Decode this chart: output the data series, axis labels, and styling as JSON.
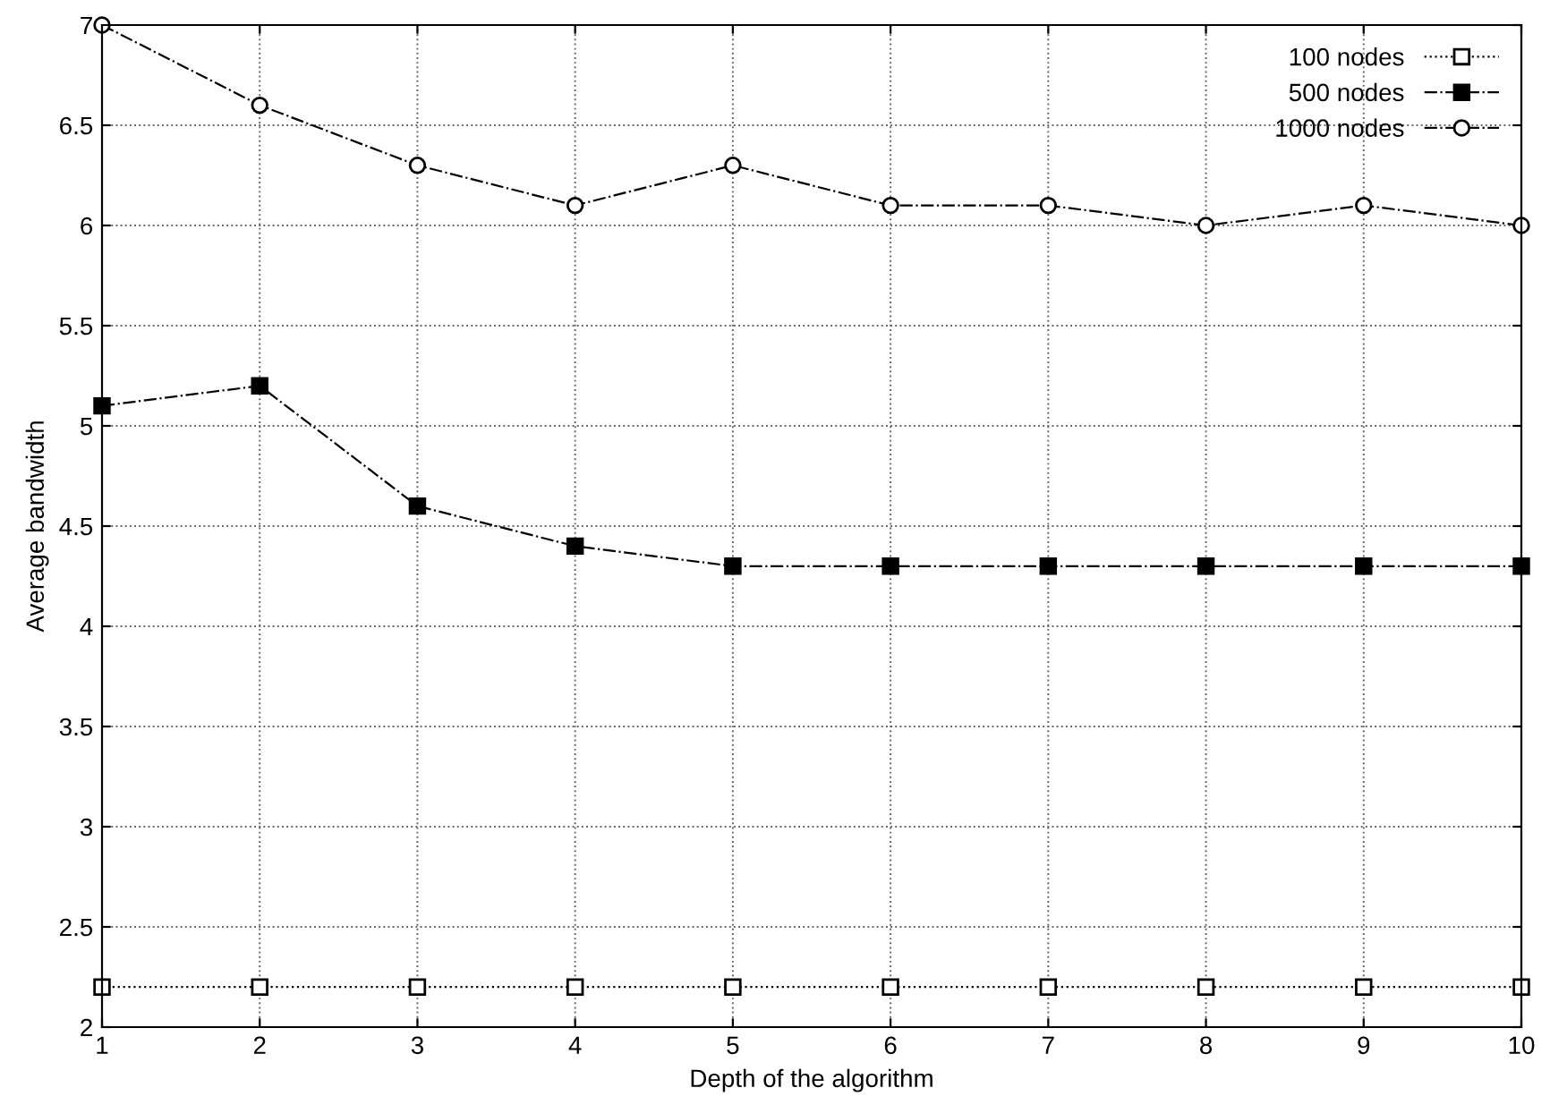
{
  "chart_data": {
    "type": "line",
    "xlabel": "Depth of the algorithm",
    "ylabel": "Average bandwidth",
    "x": [
      1,
      2,
      3,
      4,
      5,
      6,
      7,
      8,
      9,
      10
    ],
    "series": [
      {
        "name": "100 nodes",
        "color": "#000000",
        "marker": "square_open",
        "line_style": "dotted",
        "values": [
          2.2,
          2.2,
          2.2,
          2.2,
          2.2,
          2.2,
          2.2,
          2.2,
          2.2,
          2.2
        ]
      },
      {
        "name": "500 nodes",
        "color": "#000000",
        "marker": "square",
        "line_style": "dashdot",
        "values": [
          5.1,
          5.2,
          4.6,
          4.4,
          4.3,
          4.3,
          4.3,
          4.3,
          4.3,
          4.3
        ]
      },
      {
        "name": "1000 nodes",
        "color": "#000000",
        "marker": "circle_open",
        "line_style": "dashdot",
        "values": [
          7.0,
          6.6,
          6.3,
          6.1,
          6.3,
          6.1,
          6.1,
          6.0,
          6.1,
          6.0
        ]
      }
    ],
    "xlim": [
      1,
      10
    ],
    "xticks": [
      1,
      2,
      3,
      4,
      5,
      6,
      7,
      8,
      9,
      10
    ],
    "ylim": [
      2,
      7
    ],
    "yticks": [
      2,
      2.5,
      3,
      3.5,
      4,
      4.5,
      5,
      5.5,
      6,
      6.5,
      7
    ],
    "grid": true,
    "legend": "top right"
  }
}
